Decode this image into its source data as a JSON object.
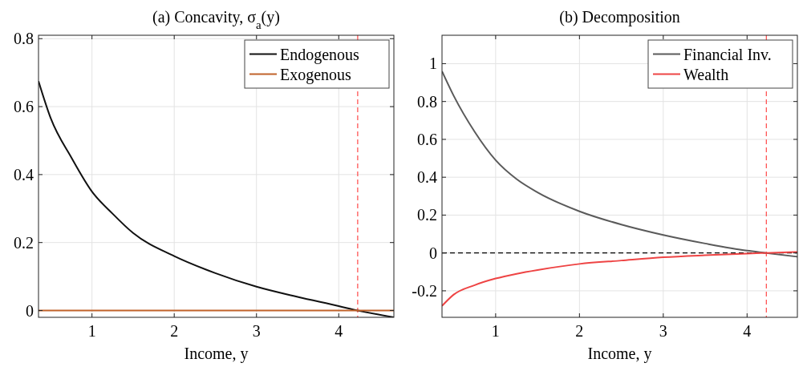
{
  "chart_data": [
    {
      "type": "line",
      "title": "(a) Concavity, σ$_{a}$(y)",
      "xlabel": "Income, y",
      "xlim": [
        0.35,
        4.67
      ],
      "ylim": [
        -0.02,
        0.81
      ],
      "xticks": [
        1,
        2,
        3,
        4
      ],
      "yticks": [
        0,
        0.2,
        0.4,
        0.6,
        0.8
      ],
      "grid": true,
      "legend": "top right",
      "ref_lines": [
        {
          "axis": "x",
          "value": 4.23,
          "color": "#ff5555",
          "line_style": "dashed"
        }
      ],
      "series": [
        {
          "name": "Endogenous",
          "color": "#111111",
          "x": [
            0.35,
            0.5,
            0.75,
            1,
            1.25,
            1.5,
            2,
            2.5,
            3,
            3.5,
            4,
            4.23,
            4.67
          ],
          "values": [
            0.675,
            0.565,
            0.45,
            0.35,
            0.285,
            0.228,
            0.16,
            0.11,
            0.07,
            0.04,
            0.013,
            0,
            -0.02
          ]
        },
        {
          "name": "Exogenous",
          "color": "#c0622a",
          "x": [
            0.35,
            4.67
          ],
          "values": [
            0,
            0
          ]
        }
      ]
    },
    {
      "type": "line",
      "title": "(b) Decomposition",
      "xlabel": "Income, y",
      "xlim": [
        0.36,
        4.6
      ],
      "ylim": [
        -0.34,
        1.15
      ],
      "xticks": [
        1,
        2,
        3,
        4
      ],
      "yticks": [
        -0.2,
        0,
        0.2,
        0.4,
        0.6,
        0.8,
        1
      ],
      "grid": true,
      "legend": "top right",
      "ref_lines": [
        {
          "axis": "y",
          "value": 0,
          "color": "#000000",
          "line_style": "dashed"
        },
        {
          "axis": "x",
          "value": 4.23,
          "color": "#ff5555",
          "line_style": "dashed"
        }
      ],
      "series": [
        {
          "name": "Financial Inv.",
          "color": "#5a5a5a",
          "x": [
            0.36,
            0.5,
            0.75,
            1,
            1.25,
            1.5,
            2,
            2.5,
            3,
            3.5,
            4,
            4.23,
            4.6
          ],
          "values": [
            0.96,
            0.83,
            0.64,
            0.49,
            0.39,
            0.32,
            0.22,
            0.15,
            0.095,
            0.05,
            0.012,
            0,
            -0.02
          ]
        },
        {
          "name": "Wealth",
          "color": "#ee4444",
          "x": [
            0.36,
            0.5,
            0.75,
            1,
            1.25,
            1.5,
            2,
            2.5,
            3,
            3.5,
            4,
            4.23,
            4.6
          ],
          "values": [
            -0.28,
            -0.22,
            -0.17,
            -0.135,
            -0.11,
            -0.09,
            -0.058,
            -0.04,
            -0.023,
            -0.012,
            -0.003,
            0,
            0.005
          ]
        }
      ]
    }
  ]
}
